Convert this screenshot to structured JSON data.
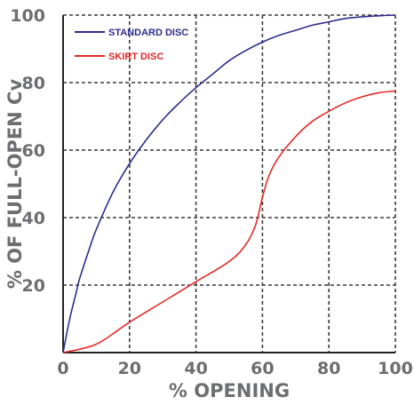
{
  "chart_data": {
    "type": "line",
    "title": "",
    "xlabel": "% OPENING",
    "ylabel": "% OF FULL-OPEN Cv",
    "xlim": [
      0,
      100
    ],
    "ylim": [
      0,
      100
    ],
    "x_ticks": [
      "0",
      "20",
      "40",
      "60",
      "80",
      "100"
    ],
    "y_ticks": [
      "20",
      "40",
      "60",
      "80",
      "100"
    ],
    "grid": true,
    "legend_position": "top-left",
    "series": [
      {
        "name": "STANDARD DISC",
        "color": "#2b2f8c",
        "x": [
          0,
          2,
          4,
          5,
          8,
          10,
          15,
          20,
          25,
          30,
          35,
          40,
          45,
          50,
          55,
          60,
          65,
          70,
          75,
          80,
          85,
          90,
          95,
          100
        ],
        "y": [
          0,
          10,
          18,
          22,
          31,
          36.5,
          47.5,
          56,
          63,
          69,
          74,
          78.5,
          82.5,
          86.5,
          89.5,
          92,
          94,
          95.5,
          97,
          98,
          99,
          99.5,
          99.8,
          100
        ]
      },
      {
        "name": "SKIRT DISC",
        "color": "#e42a27",
        "x": [
          0,
          10,
          20,
          30,
          40,
          50,
          55,
          58,
          60,
          62,
          65,
          70,
          75,
          80,
          85,
          90,
          95,
          100
        ],
        "y": [
          0,
          2.5,
          9,
          15,
          21,
          27,
          32,
          38,
          46,
          52.5,
          58,
          64,
          68.5,
          71.5,
          74,
          75.8,
          77,
          77.5
        ]
      }
    ]
  }
}
